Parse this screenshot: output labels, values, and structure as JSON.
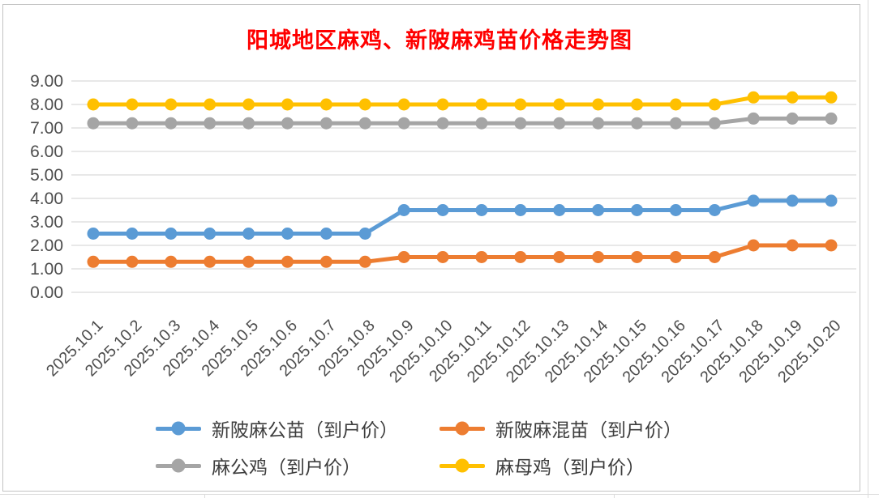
{
  "title": {
    "text": "阳城地区麻鸡、新陂麻鸡苗价格走势图",
    "color": "#FF0000"
  },
  "chart_data": {
    "type": "line",
    "x": [
      "2025.10.1",
      "2025.10.2",
      "2025.10.3",
      "2025.10.4",
      "2025.10.5",
      "2025.10.6",
      "2025.10.7",
      "2025.10.8",
      "2025.10.9",
      "2025.10.10",
      "2025.10.11",
      "2025.10.12",
      "2025.10.13",
      "2025.10.14",
      "2025.10.15",
      "2025.10.16",
      "2025.10.17",
      "2025.10.18",
      "2025.10.19",
      "2025.10.20"
    ],
    "series": [
      {
        "name": "新陂麻公苗（到户价）",
        "color": "#5B9BD5",
        "values": [
          2.5,
          2.5,
          2.5,
          2.5,
          2.5,
          2.5,
          2.5,
          2.5,
          3.5,
          3.5,
          3.5,
          3.5,
          3.5,
          3.5,
          3.5,
          3.5,
          3.5,
          3.9,
          3.9,
          3.9
        ]
      },
      {
        "name": "新陂麻混苗（到户价）",
        "color": "#ED7D31",
        "values": [
          1.3,
          1.3,
          1.3,
          1.3,
          1.3,
          1.3,
          1.3,
          1.3,
          1.5,
          1.5,
          1.5,
          1.5,
          1.5,
          1.5,
          1.5,
          1.5,
          1.5,
          2.0,
          2.0,
          2.0
        ]
      },
      {
        "name": "麻公鸡（到户价）",
        "color": "#A5A5A5",
        "values": [
          7.2,
          7.2,
          7.2,
          7.2,
          7.2,
          7.2,
          7.2,
          7.2,
          7.2,
          7.2,
          7.2,
          7.2,
          7.2,
          7.2,
          7.2,
          7.2,
          7.2,
          7.4,
          7.4,
          7.4
        ]
      },
      {
        "name": "麻母鸡（到户价）",
        "color": "#FFC000",
        "values": [
          8.0,
          8.0,
          8.0,
          8.0,
          8.0,
          8.0,
          8.0,
          8.0,
          8.0,
          8.0,
          8.0,
          8.0,
          8.0,
          8.0,
          8.0,
          8.0,
          8.0,
          8.3,
          8.3,
          8.3
        ]
      }
    ],
    "ylim": [
      0,
      9
    ],
    "yticks": [
      "0.00",
      "1.00",
      "2.00",
      "3.00",
      "4.00",
      "5.00",
      "6.00",
      "7.00",
      "8.00",
      "9.00"
    ],
    "xlabel": "",
    "ylabel": "",
    "grid": "horizontal",
    "gridline_color": "#D9D9D9",
    "legend_position": "bottom"
  }
}
